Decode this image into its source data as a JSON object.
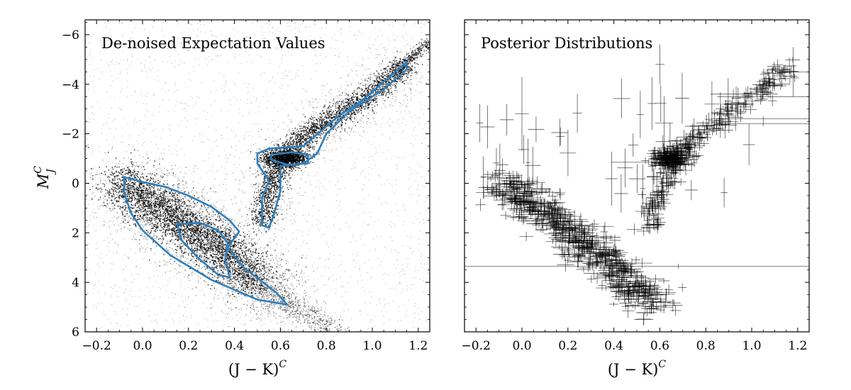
{
  "figure": {
    "panels": [
      {
        "title": "De-noised Expectation Values"
      },
      {
        "title": "Posterior Distributions"
      }
    ]
  },
  "chart_data": [
    {
      "type": "scatter",
      "title": "De-noised Expectation Values",
      "xlabel": "(J − K)",
      "xlabel_sup": "C",
      "ylabel": "M",
      "ylabel_sup": "C",
      "ylabel_sub": "J",
      "xlim": [
        -0.25,
        1.25
      ],
      "ylim": [
        6,
        -6.6
      ],
      "y_inverted": true,
      "xticks": [
        -0.2,
        0.0,
        0.2,
        0.4,
        0.6,
        0.8,
        1.0,
        1.2
      ],
      "xtick_labels": [
        "−0.2",
        "0.0",
        "0.2",
        "0.4",
        "0.6",
        "0.8",
        "1.0",
        "1.2"
      ],
      "yticks": [
        -6,
        -4,
        -2,
        0,
        2,
        4,
        6
      ],
      "ytick_labels": [
        "−6",
        "−4",
        "−2",
        "0",
        "2",
        "4",
        "6"
      ],
      "grid": false,
      "point_color": "#000000",
      "contour_color": "#2e7ebc",
      "main_sequence": [
        [
          -0.1,
          -0.2
        ],
        [
          0.0,
          0.6
        ],
        [
          0.1,
          1.2
        ],
        [
          0.2,
          1.8
        ],
        [
          0.3,
          2.4
        ],
        [
          0.4,
          3.1
        ],
        [
          0.5,
          4.0
        ],
        [
          0.6,
          4.8
        ]
      ],
      "red_clump": {
        "x": 0.62,
        "y": -1.0
      },
      "giant_branch": [
        [
          0.52,
          1.6
        ],
        [
          0.56,
          0.0
        ],
        [
          0.62,
          -1.2
        ],
        [
          0.75,
          -2.2
        ],
        [
          0.9,
          -3.0
        ],
        [
          1.05,
          -4.0
        ],
        [
          1.15,
          -4.9
        ]
      ],
      "contour_outer": [
        [
          -0.08,
          -0.25
        ],
        [
          0.0,
          -0.05
        ],
        [
          0.1,
          0.15
        ],
        [
          0.2,
          0.5
        ],
        [
          0.3,
          0.95
        ],
        [
          0.38,
          1.5
        ],
        [
          0.42,
          1.95
        ],
        [
          0.37,
          2.6
        ],
        [
          0.44,
          3.4
        ],
        [
          0.58,
          4.4
        ],
        [
          0.63,
          4.9
        ],
        [
          0.5,
          4.7
        ],
        [
          0.3,
          3.9
        ],
        [
          0.12,
          2.9
        ],
        [
          0.0,
          1.9
        ],
        [
          -0.05,
          1.2
        ],
        [
          -0.08,
          0.4
        ],
        [
          -0.08,
          -0.25
        ]
      ],
      "contour_ms_inner": [
        [
          0.15,
          1.65
        ],
        [
          0.25,
          1.6
        ],
        [
          0.33,
          1.9
        ],
        [
          0.37,
          2.4
        ],
        [
          0.36,
          3.1
        ],
        [
          0.38,
          3.8
        ],
        [
          0.33,
          3.7
        ],
        [
          0.24,
          3.0
        ],
        [
          0.17,
          2.3
        ],
        [
          0.15,
          1.65
        ]
      ],
      "contour_giant_outer": [
        [
          0.5,
          -1.2
        ],
        [
          0.55,
          -1.4
        ],
        [
          0.7,
          -1.5
        ],
        [
          0.75,
          -1.9
        ],
        [
          0.85,
          -2.7
        ],
        [
          0.95,
          -3.3
        ],
        [
          1.05,
          -4.1
        ],
        [
          1.15,
          -4.9
        ],
        [
          1.15,
          -4.6
        ],
        [
          1.05,
          -3.8
        ],
        [
          0.9,
          -2.9
        ],
        [
          0.8,
          -2.0
        ],
        [
          0.76,
          -1.2
        ],
        [
          0.7,
          -0.8
        ],
        [
          0.6,
          -0.7
        ],
        [
          0.6,
          0.3
        ],
        [
          0.57,
          1.3
        ],
        [
          0.55,
          1.8
        ],
        [
          0.52,
          1.7
        ],
        [
          0.52,
          0.6
        ],
        [
          0.55,
          -0.1
        ],
        [
          0.5,
          -0.8
        ],
        [
          0.5,
          -1.2
        ]
      ],
      "contour_clump_inner": [
        [
          0.56,
          -1.15
        ],
        [
          0.65,
          -1.25
        ],
        [
          0.72,
          -1.15
        ],
        [
          0.72,
          -0.8
        ],
        [
          0.63,
          -0.75
        ],
        [
          0.56,
          -0.95
        ],
        [
          0.56,
          -1.15
        ]
      ]
    },
    {
      "type": "scatter",
      "title": "Posterior Distributions",
      "xlabel": "(J − K)",
      "xlabel_sup": "C",
      "xlim": [
        -0.25,
        1.25
      ],
      "ylim": [
        6,
        -6.6
      ],
      "y_inverted": true,
      "xticks": [
        -0.2,
        0.0,
        0.2,
        0.4,
        0.6,
        0.8,
        1.0,
        1.2
      ],
      "xtick_labels": [
        "−0.2",
        "0.0",
        "0.2",
        "0.4",
        "0.6",
        "0.8",
        "1.0",
        "1.2"
      ],
      "yticks": [
        -6,
        -4,
        -2,
        0,
        2,
        4,
        6
      ],
      "ytick_labels_visible": false,
      "grid": false,
      "marker": "error-bar crosses",
      "point_color": "#000000",
      "main_sequence": [
        [
          -0.08,
          0.0
        ],
        [
          0.0,
          0.6
        ],
        [
          0.1,
          1.2
        ],
        [
          0.2,
          1.9
        ],
        [
          0.3,
          2.6
        ],
        [
          0.4,
          3.4
        ],
        [
          0.5,
          4.3
        ],
        [
          0.6,
          4.7
        ]
      ],
      "red_clump": {
        "x": 0.65,
        "y": -1.0
      },
      "giant_branch": [
        [
          0.55,
          1.8
        ],
        [
          0.6,
          0.4
        ],
        [
          0.65,
          -1.0
        ],
        [
          0.75,
          -1.8
        ],
        [
          0.9,
          -2.8
        ],
        [
          1.05,
          -3.8
        ],
        [
          1.15,
          -4.7
        ]
      ],
      "outliers": [
        {
          "x": 0.68,
          "y": 3.35,
          "xerr": 0.95,
          "yerr": 0.1
        },
        {
          "x": 0.55,
          "y": -0.85,
          "xerr": 0.16,
          "yerr": 0.1
        },
        {
          "x": 1.05,
          "y": -3.5,
          "xerr": 0.2,
          "yerr": 0.1
        },
        {
          "x": 1.05,
          "y": -2.6,
          "xerr": 0.2,
          "yerr": 0.1
        },
        {
          "x": 1.05,
          "y": -2.4,
          "xerr": 0.2,
          "yerr": 0.1
        },
        {
          "x": 0.92,
          "y": -3.6,
          "xerr": 0.1,
          "yerr": 0.2
        },
        {
          "x": 0.0,
          "y": -2.8,
          "xerr": 0.03,
          "yerr": 1.5
        },
        {
          "x": 1.18,
          "y": -4.5,
          "xerr": 0.08,
          "yerr": 1.0
        },
        {
          "x": 0.6,
          "y": -4.8,
          "xerr": 0.02,
          "yerr": 0.8
        }
      ]
    }
  ]
}
